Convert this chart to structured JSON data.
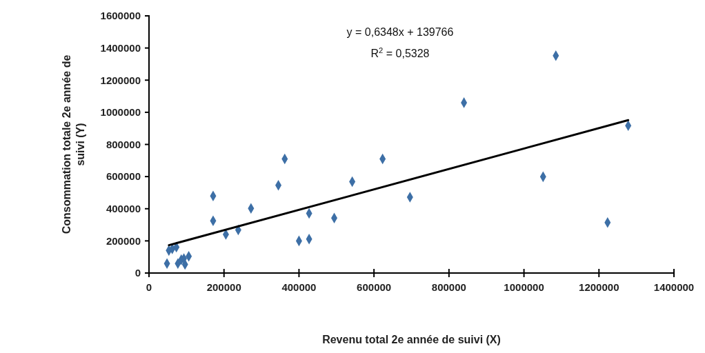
{
  "chart_data": {
    "type": "scatter",
    "xlabel": "Revenu total 2e année de suivi (X)",
    "ylabel": "Consommation totale 2e année de suivi (Y)",
    "annotations": [
      "y = 0,6348x + 139766",
      "R$^{2}$ = 0,5328"
    ],
    "xlim": [
      0,
      1400000
    ],
    "xticks": [
      0,
      200000,
      400000,
      600000,
      800000,
      1000000,
      1200000,
      1400000
    ],
    "ylim": [
      0,
      1600000
    ],
    "yticks": [
      0,
      200000,
      400000,
      600000,
      800000,
      1000000,
      1200000,
      1400000,
      1600000
    ],
    "grid": false,
    "marker": "diamond",
    "series": [
      {
        "color": "#3d6fa6",
        "x": [
          48000,
          77000,
          86000,
          96000,
          93000,
          106000,
          53000,
          62000,
          73000,
          171000,
          171000,
          205000,
          238000,
          272000,
          345000,
          362000,
          400000,
          427000,
          427000,
          494000,
          542000,
          623000,
          696000,
          840000,
          1085000,
          1051000,
          1223000,
          1278000
        ],
        "values": [
          59000,
          59000,
          83000,
          54000,
          90000,
          104000,
          140000,
          150000,
          161000,
          479000,
          325000,
          240000,
          268000,
          402000,
          546000,
          710000,
          200000,
          371000,
          211000,
          342000,
          568000,
          710000,
          472000,
          1060000,
          1352000,
          599000,
          314000,
          917000
        ]
      },
      {
        "type": "line",
        "color": "#000000",
        "marker": "none",
        "line_style": "solid",
        "x": [
          53000,
          1278000
        ],
        "values": [
          173000,
          951000
        ]
      }
    ]
  }
}
